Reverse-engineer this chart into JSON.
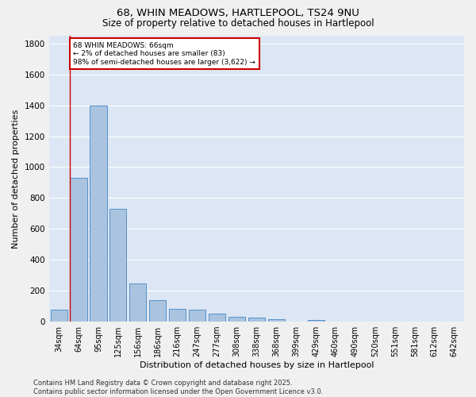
{
  "title_line1": "68, WHIN MEADOWS, HARTLEPOOL, TS24 9NU",
  "title_line2": "Size of property relative to detached houses in Hartlepool",
  "xlabel": "Distribution of detached houses by size in Hartlepool",
  "ylabel": "Number of detached properties",
  "bar_values": [
    80,
    930,
    1400,
    730,
    245,
    140,
    85,
    80,
    50,
    30,
    25,
    15,
    0,
    10,
    0,
    0,
    0,
    0,
    0,
    0,
    0
  ],
  "categories": [
    "34sqm",
    "64sqm",
    "95sqm",
    "125sqm",
    "156sqm",
    "186sqm",
    "216sqm",
    "247sqm",
    "277sqm",
    "308sqm",
    "338sqm",
    "368sqm",
    "399sqm",
    "429sqm",
    "460sqm",
    "490sqm",
    "520sqm",
    "551sqm",
    "581sqm",
    "612sqm",
    "642sqm"
  ],
  "bar_color": "#aac4e0",
  "bar_edge_color": "#5590c8",
  "background_color": "#dce6f5",
  "grid_color": "#ffffff",
  "annotation_box_color": "#cc0000",
  "annotation_line_color": "#cc0000",
  "annotation_text_line1": "68 WHIN MEADOWS: 66sqm",
  "annotation_text_line2": "← 2% of detached houses are smaller (83)",
  "annotation_text_line3": "98% of semi-detached houses are larger (3,622) →",
  "ylim": [
    0,
    1850
  ],
  "yticks": [
    0,
    200,
    400,
    600,
    800,
    1000,
    1200,
    1400,
    1600,
    1800
  ],
  "footer_line1": "Contains HM Land Registry data © Crown copyright and database right 2025.",
  "footer_line2": "Contains public sector information licensed under the Open Government Licence v3.0.",
  "fig_facecolor": "#f0f0f0"
}
